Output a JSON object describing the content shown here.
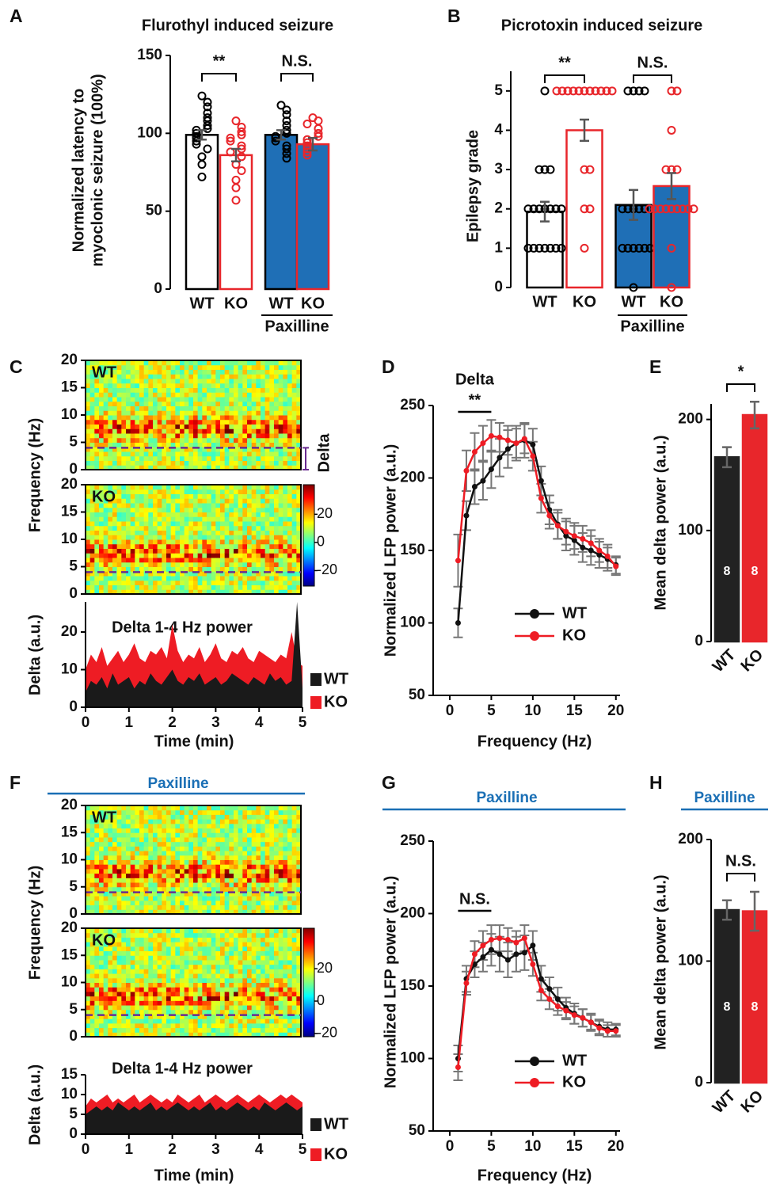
{
  "chart_data": [
    {
      "type": "bar",
      "panel": "A",
      "title": "Flurothyl induced seizure",
      "ylabel": [
        "Normalized latency to",
        "myoclonic seizure (100%)"
      ],
      "categories": [
        "WT",
        "KO",
        "WT",
        "KO"
      ],
      "values": [
        99,
        86,
        99,
        93
      ],
      "errors": [
        3,
        4,
        3,
        4
      ],
      "fills": [
        "#ffffff",
        "#ffffff",
        "#1f6fb6",
        "#1f6fb6"
      ],
      "strokes": [
        "#000000",
        "#e8262b",
        "#000000",
        "#e8262b"
      ],
      "error_color": "#555555",
      "points": [
        [
          124,
          120,
          117,
          113,
          110,
          108,
          105,
          103,
          102,
          100,
          98,
          97,
          95,
          93,
          90,
          85,
          80,
          72
        ],
        [
          108,
          104,
          101,
          99,
          97,
          95,
          92,
          90,
          88,
          85,
          80,
          76,
          70,
          65,
          57
        ],
        [
          118,
          115,
          112,
          108,
          105,
          102,
          100,
          98,
          97,
          95,
          92,
          90,
          87,
          84
        ],
        [
          110,
          108,
          106,
          103,
          100,
          98,
          96,
          94,
          92,
          90,
          88,
          86
        ]
      ],
      "group_label": "Paxilline",
      "annotations": [
        "**",
        "N.S."
      ],
      "ylim": [
        0,
        150
      ],
      "yticks": [
        0,
        50,
        100,
        150
      ]
    },
    {
      "type": "bar",
      "panel": "B",
      "title": "Picrotoxin induced seizure",
      "ylabel": "Epilepsy grade",
      "categories": [
        "WT",
        "KO",
        "WT",
        "KO"
      ],
      "values": [
        1.93,
        4.0,
        2.1,
        2.58
      ],
      "errors": [
        0.25,
        0.27,
        0.38,
        0.33
      ],
      "fills": [
        "#ffffff",
        "#ffffff",
        "#1f6fb6",
        "#1f6fb6"
      ],
      "strokes": [
        "#000000",
        "#e8262b",
        "#000000",
        "#e8262b"
      ],
      "error_color": "#555555",
      "points": [
        [
          5,
          3,
          3,
          3,
          2,
          2,
          2,
          2,
          2,
          2,
          2,
          1,
          1,
          1,
          1,
          1,
          1,
          1
        ],
        [
          5,
          5,
          5,
          5,
          5,
          5,
          5,
          5,
          5,
          5,
          5,
          3,
          3,
          2,
          2,
          1
        ],
        [
          5,
          5,
          5,
          5,
          2,
          2,
          2,
          2,
          2,
          2,
          1,
          1,
          1,
          1,
          1,
          1,
          0
        ],
        [
          5,
          5,
          4,
          3,
          3,
          3,
          2,
          2,
          2,
          2,
          2,
          2,
          2,
          2,
          2,
          1,
          0
        ]
      ],
      "group_label": "Paxilline",
      "annotations": [
        "**",
        "N.S."
      ],
      "ylim": [
        0,
        5.5
      ],
      "yticks": [
        0,
        1,
        2,
        3,
        4,
        5
      ]
    },
    {
      "type": "spectrogram",
      "panel": "C",
      "ylabel": "Frequency (Hz)",
      "panels": [
        "WT",
        "KO"
      ],
      "ylim": [
        0,
        20
      ],
      "yticks": [
        0,
        5,
        10,
        15,
        20
      ],
      "delta_cutoff": 4,
      "cutoff_color": "#6a2c91",
      "band_label": "Delta",
      "colorbar_lim": [
        -31,
        41
      ],
      "colorbar_ticks": [
        20,
        0,
        -20
      ]
    },
    {
      "type": "area",
      "title": "Delta 1-4 Hz power",
      "ylabel": "Delta (a.u.)",
      "xlabel": "Time (min)",
      "x": [
        0,
        0.125,
        0.25,
        0.375,
        0.5,
        0.625,
        0.75,
        0.875,
        1,
        1.125,
        1.25,
        1.375,
        1.5,
        1.625,
        1.75,
        1.875,
        2,
        2.125,
        2.25,
        2.375,
        2.5,
        2.625,
        2.75,
        2.875,
        3,
        3.125,
        3.25,
        3.375,
        3.5,
        3.625,
        3.75,
        3.875,
        4,
        4.125,
        4.25,
        4.375,
        4.5,
        4.625,
        4.75,
        4.875,
        5
      ],
      "series": [
        {
          "name": "WT",
          "color": "#1a1a1a",
          "values": [
            4,
            7,
            6,
            8,
            5,
            9,
            6,
            7,
            8,
            5,
            7,
            6,
            9,
            7,
            6,
            8,
            10,
            7,
            6,
            8,
            7,
            9,
            6,
            7,
            8,
            6,
            7,
            9,
            8,
            7,
            6,
            8,
            7,
            6,
            9,
            7,
            8,
            6,
            7,
            28,
            5
          ]
        },
        {
          "name": "KO",
          "color": "#ee1c24",
          "values": [
            10,
            14,
            12,
            16,
            11,
            13,
            15,
            12,
            14,
            17,
            13,
            12,
            15,
            14,
            16,
            13,
            22,
            15,
            12,
            14,
            13,
            16,
            12,
            14,
            17,
            13,
            12,
            15,
            14,
            16,
            13,
            12,
            15,
            14,
            13,
            12,
            14,
            13,
            20,
            12,
            11
          ]
        }
      ],
      "xlim": [
        0,
        5
      ],
      "xticks": [
        0,
        1,
        2,
        3,
        4,
        5
      ],
      "ylim": [
        0,
        28
      ],
      "yticks": [
        0,
        10,
        20
      ]
    },
    {
      "type": "line",
      "panel": "D",
      "ylabel": "Normalized  LFP power (a.u.)",
      "xlabel": "Frequency (Hz)",
      "x": [
        1,
        2,
        3,
        4,
        5,
        6,
        7,
        8,
        9,
        10,
        11,
        12,
        13,
        14,
        15,
        16,
        17,
        18,
        19,
        20
      ],
      "series": [
        {
          "name": "WT",
          "color": "#111111",
          "values": [
            100,
            174,
            194,
            198,
            206,
            214,
            220,
            224,
            226,
            223,
            198,
            178,
            168,
            160,
            157,
            152,
            150,
            147,
            144,
            140
          ],
          "errors": [
            10,
            10,
            12,
            13,
            13,
            13,
            13,
            12,
            12,
            11,
            10,
            10,
            10,
            10,
            10,
            10,
            10,
            9,
            8,
            6
          ]
        },
        {
          "name": "KO",
          "color": "#ee1c24",
          "values": [
            143,
            205,
            218,
            224,
            229,
            228,
            226,
            224,
            227,
            215,
            186,
            174,
            167,
            163,
            160,
            158,
            155,
            150,
            146,
            139
          ],
          "errors": [
            18,
            14,
            13,
            12,
            11,
            10,
            10,
            10,
            10,
            10,
            10,
            9,
            9,
            9,
            9,
            9,
            9,
            8,
            8,
            6
          ]
        }
      ],
      "error_color": "#777777",
      "xlim": [
        -2,
        20.5
      ],
      "xticks": [
        0,
        5,
        10,
        15,
        20
      ],
      "ylim": [
        50,
        250
      ],
      "yticks": [
        50,
        100,
        150,
        200,
        250
      ],
      "bracket_title": "Delta",
      "bracket_label": "**",
      "bracket_range": [
        1,
        5
      ]
    },
    {
      "type": "bar",
      "panel": "E",
      "ylabel": "Mean delta power (a.u.)",
      "categories": [
        "WT",
        "KO"
      ],
      "values": [
        166,
        204
      ],
      "errors": [
        9,
        12
      ],
      "fills": [
        "#222222",
        "#e8262b"
      ],
      "strokes": [
        "#222222",
        "#e8262b"
      ],
      "error_color": "#666666",
      "n_labels": [
        "8",
        "8"
      ],
      "annotations": [
        "*"
      ],
      "ylim": [
        0,
        214
      ],
      "yticks": [
        0,
        100,
        200
      ]
    },
    {
      "type": "spectrogram",
      "panel": "F",
      "header": "Paxilline",
      "header_color": "#1a6fb5",
      "ylabel": "Frequency (Hz)",
      "panels": [
        "WT",
        "KO"
      ],
      "ylim": [
        0,
        20
      ],
      "yticks": [
        0,
        5,
        10,
        15,
        20
      ],
      "delta_cutoff": 4,
      "cutoff_color": "#6a2c91",
      "colorbar_lim": [
        -22,
        45
      ],
      "colorbar_ticks": [
        20,
        0,
        -20
      ]
    },
    {
      "type": "area",
      "title": "Delta 1-4 Hz power",
      "ylabel": "Delta (a.u.)",
      "xlabel": "Time (min)",
      "x": [
        0,
        0.125,
        0.25,
        0.375,
        0.5,
        0.625,
        0.75,
        0.875,
        1,
        1.125,
        1.25,
        1.375,
        1.5,
        1.625,
        1.75,
        1.875,
        2,
        2.125,
        2.25,
        2.375,
        2.5,
        2.625,
        2.75,
        2.875,
        3,
        3.125,
        3.25,
        3.375,
        3.5,
        3.625,
        3.75,
        3.875,
        4,
        4.125,
        4.25,
        4.375,
        4.5,
        4.625,
        4.75,
        4.875,
        5
      ],
      "series": [
        {
          "name": "WT",
          "color": "#1a1a1a",
          "values": [
            5,
            6,
            7,
            6,
            7,
            6,
            8,
            7,
            6,
            7,
            6,
            7,
            8,
            6,
            7,
            6,
            7,
            8,
            7,
            6,
            7,
            6,
            7,
            8,
            6,
            7,
            6,
            7,
            8,
            7,
            6,
            7,
            6,
            8,
            7,
            6,
            7,
            8,
            7,
            6,
            7
          ]
        },
        {
          "name": "KO",
          "color": "#ee1c24",
          "values": [
            7,
            9,
            8,
            9,
            10,
            8,
            9,
            8,
            9,
            10,
            8,
            9,
            10,
            9,
            8,
            9,
            8,
            10,
            9,
            8,
            9,
            10,
            8,
            9,
            10,
            9,
            8,
            9,
            10,
            9,
            8,
            9,
            10,
            9,
            8,
            9,
            10,
            9,
            10,
            9,
            8
          ]
        }
      ],
      "xlim": [
        0,
        5
      ],
      "xticks": [
        0,
        1,
        2,
        3,
        4,
        5
      ],
      "ylim": [
        0,
        15
      ],
      "yticks": [
        0,
        5,
        10,
        15
      ]
    },
    {
      "type": "line",
      "panel": "G",
      "header": "Paxilline",
      "header_color": "#1a6fb5",
      "ylabel": "Normalized  LFP power (a.u.)",
      "xlabel": "Frequency (Hz)",
      "x": [
        1,
        2,
        3,
        4,
        5,
        6,
        7,
        8,
        9,
        10,
        11,
        12,
        13,
        14,
        15,
        16,
        17,
        18,
        19,
        20
      ],
      "series": [
        {
          "name": "WT",
          "color": "#111111",
          "values": [
            100,
            155,
            165,
            170,
            175,
            172,
            168,
            172,
            173,
            178,
            155,
            148,
            141,
            135,
            131,
            128,
            125,
            122,
            120,
            120
          ],
          "errors": [
            9,
            9,
            9,
            10,
            11,
            12,
            12,
            12,
            12,
            10,
            9,
            8,
            8,
            7,
            7,
            6,
            6,
            5,
            5,
            4
          ]
        },
        {
          "name": "KO",
          "color": "#ee1c24",
          "values": [
            94,
            152,
            172,
            178,
            182,
            183,
            182,
            180,
            183,
            165,
            147,
            141,
            136,
            133,
            130,
            128,
            125,
            121,
            119,
            119
          ],
          "errors": [
            9,
            8,
            9,
            10,
            10,
            9,
            8,
            8,
            9,
            8,
            7,
            7,
            6,
            6,
            6,
            6,
            5,
            5,
            4,
            4
          ]
        }
      ],
      "error_color": "#777777",
      "xlim": [
        -2,
        20.5
      ],
      "xticks": [
        0,
        5,
        10,
        15,
        20
      ],
      "ylim": [
        50,
        250
      ],
      "yticks": [
        50,
        100,
        150,
        200,
        250
      ],
      "bracket_label": "N.S.",
      "bracket_range": [
        1,
        5
      ]
    },
    {
      "type": "bar",
      "panel": "H",
      "header": "Paxilline",
      "header_color": "#1a6fb5",
      "ylabel": "Mean delta power (a.u.)",
      "categories": [
        "WT",
        "KO"
      ],
      "values": [
        142,
        141
      ],
      "errors": [
        8,
        16
      ],
      "fills": [
        "#222222",
        "#e8262b"
      ],
      "strokes": [
        "#222222",
        "#e8262b"
      ],
      "error_color": "#666666",
      "n_labels": [
        "8",
        "8"
      ],
      "annotations": [
        "N.S."
      ],
      "ylim": [
        0,
        200
      ],
      "yticks": [
        0,
        100,
        200
      ]
    }
  ]
}
